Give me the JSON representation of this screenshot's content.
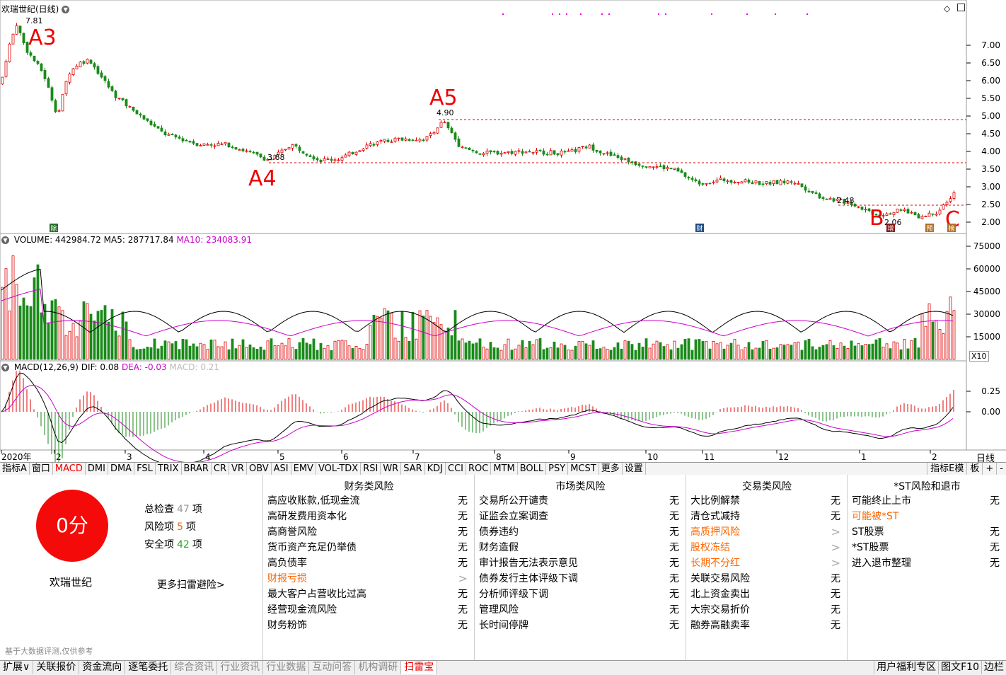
{
  "main_panel": {
    "title": "欢瑞世纪(日线)",
    "y_ticks": [
      "7.00",
      "6.50",
      "6.00",
      "5.50",
      "5.00",
      "4.50",
      "4.00",
      "3.50",
      "3.00",
      "2.50",
      "2.00"
    ],
    "price_labels": {
      "high": "7.81",
      "a5": "4.90",
      "a4": "3.68",
      "b_level": "2.48",
      "low": "2.06"
    },
    "annotations": {
      "a3": "A3",
      "a4": "A4",
      "a5": "A5",
      "b": "B",
      "c": "C"
    },
    "markers": {
      "m1": "除",
      "m2": "财",
      "m3": "增",
      "m4": "预",
      "m5": "榜"
    }
  },
  "volume_panel": {
    "label_main": "VOLUME: 442984.72",
    "label_ma5": "MA5: 287717.84",
    "label_ma10": "MA10: 234083.91",
    "y_ticks": [
      "75000",
      "60000",
      "45000",
      "30000",
      "15000"
    ],
    "unit": "X10"
  },
  "macd_panel": {
    "label_main": "MACD(12,26,9)",
    "label_dif": "DIF: 0.08",
    "label_dea": "DEA: -0.03",
    "label_macd": "MACD: 0.21",
    "y_ticks": [
      "0.25",
      "0.00"
    ]
  },
  "time_axis": {
    "labels": [
      "2020年",
      "2",
      "3",
      "4",
      "5",
      "6",
      "7",
      "8",
      "9",
      "10",
      "11",
      "12",
      "1",
      "2"
    ],
    "period": "日线"
  },
  "indicator_tabs": {
    "items": [
      "指标A",
      "窗口",
      "MACD",
      "DMI",
      "DMA",
      "FSL",
      "TRIX",
      "BRAR",
      "CR",
      "VR",
      "OBV",
      "ASI",
      "EMV",
      "VOL-TDX",
      "RSI",
      "WR",
      "SAR",
      "KDJ",
      "CCI",
      "ROC",
      "MTM",
      "BOLL",
      "PSY",
      "MCST",
      "更多",
      "设置"
    ],
    "right": [
      "指标E模",
      "板",
      "+",
      "-"
    ]
  },
  "risk": {
    "score": "0分",
    "stock_name": "欢瑞世纪",
    "stats": [
      {
        "label": "总检查",
        "value": "47",
        "unit": "项"
      },
      {
        "label": "风险项",
        "value": "5",
        "unit": "项"
      },
      {
        "label": "安全项",
        "value": "42",
        "unit": "项"
      }
    ],
    "more_link": "更多扫雷避险>",
    "footnote": "基于大数据评测,仅供参考",
    "columns": [
      {
        "title": "财务类风险",
        "items": [
          {
            "label": "高应收账款,低现金流",
            "value": "无",
            "flag": false
          },
          {
            "label": "高研发费用资本化",
            "value": "无",
            "flag": false
          },
          {
            "label": "高商誉风险",
            "value": "无",
            "flag": false
          },
          {
            "label": "货币资产充足仍举债",
            "value": "无",
            "flag": false
          },
          {
            "label": "高负债率",
            "value": "无",
            "flag": false
          },
          {
            "label": "财报亏损",
            "value": ">",
            "flag": true
          },
          {
            "label": "最大客户占营收比过高",
            "value": "无",
            "flag": false
          },
          {
            "label": "经营现金流风险",
            "value": "无",
            "flag": false
          },
          {
            "label": "财务粉饰",
            "value": "无",
            "flag": false
          }
        ]
      },
      {
        "title": "市场类风险",
        "items": [
          {
            "label": "交易所公开谴责",
            "value": "无",
            "flag": false
          },
          {
            "label": "证监会立案调查",
            "value": "无",
            "flag": false
          },
          {
            "label": "债券违约",
            "value": "无",
            "flag": false
          },
          {
            "label": "财务造假",
            "value": "无",
            "flag": false
          },
          {
            "label": "审计报告无法表示意见",
            "value": "无",
            "flag": false
          },
          {
            "label": "债券发行主体评级下调",
            "value": "无",
            "flag": false
          },
          {
            "label": "分析师评级下调",
            "value": "无",
            "flag": false
          },
          {
            "label": "管理风险",
            "value": "无",
            "flag": false
          },
          {
            "label": "长时间停牌",
            "value": "无",
            "flag": false
          }
        ]
      },
      {
        "title": "交易类风险",
        "items": [
          {
            "label": "大比例解禁",
            "value": "无",
            "flag": false
          },
          {
            "label": "清仓式减持",
            "value": "无",
            "flag": false
          },
          {
            "label": "高质押风险",
            "value": ">",
            "flag": true
          },
          {
            "label": "股权冻结",
            "value": ">",
            "flag": true
          },
          {
            "label": "长期不分红",
            "value": ">",
            "flag": true
          },
          {
            "label": "关联交易风险",
            "value": "无",
            "flag": false
          },
          {
            "label": "北上资金卖出",
            "value": "无",
            "flag": false
          },
          {
            "label": "大宗交易折价",
            "value": "无",
            "flag": false
          },
          {
            "label": "融券高融卖率",
            "value": "无",
            "flag": false
          }
        ]
      },
      {
        "title": "*ST风险和退市",
        "items": [
          {
            "label": "可能终止上市",
            "value": "无",
            "flag": false
          },
          {
            "label": "可能被*ST",
            "value": "",
            "flag": true
          },
          {
            "label": "ST股票",
            "value": "无",
            "flag": false
          },
          {
            "label": "*ST股票",
            "value": "无",
            "flag": false
          },
          {
            "label": "进入退市整理",
            "value": "无",
            "flag": false
          }
        ]
      }
    ]
  },
  "bottom_tabs": {
    "items": [
      "扩展∨",
      "关联报价",
      "资金流向",
      "逐笔委托",
      "综合资讯",
      "行业资讯",
      "行业数据",
      "互动问答",
      "机构调研",
      "扫雷宝"
    ],
    "right": [
      "用户福利专区",
      "图文F10",
      "边栏"
    ]
  },
  "colors": {
    "up": "#e00000",
    "down": "#1a8a1a",
    "ma10": "#cc00cc",
    "dashed": "#e00000"
  }
}
